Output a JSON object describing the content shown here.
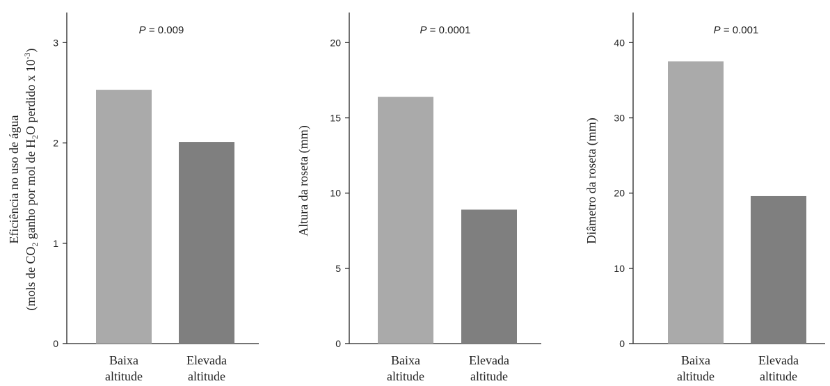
{
  "chart_data": [
    {
      "type": "bar",
      "annotation": {
        "var": "P",
        "text": " = 0.009"
      },
      "ylabel_line1": "Eficiência no uso de água",
      "ylabel_line2": {
        "a": "(mols de CO",
        "sub1": "2",
        "b": " ganho por mol de H",
        "sub2": "2",
        "c": "O perdido x 10",
        "sup": "-3",
        "d": ")"
      },
      "categories": [
        [
          "Baixa",
          "altitude"
        ],
        [
          "Elevada",
          "altitude"
        ]
      ],
      "values": [
        2.53,
        2.01
      ],
      "ylim": [
        0,
        3.3
      ],
      "yticks": [
        "0",
        "1",
        "2",
        "3"
      ],
      "colors": [
        "#aaaaaa",
        "#7f7f7f"
      ]
    },
    {
      "type": "bar",
      "annotation": {
        "var": "P",
        "text": " = 0.0001"
      },
      "ylabel": "Altura da roseta (mm)",
      "categories": [
        [
          "Baixa",
          "altitude"
        ],
        [
          "Elevada",
          "altitude"
        ]
      ],
      "values": [
        16.4,
        8.9
      ],
      "ylim": [
        0,
        22
      ],
      "yticks": [
        "0",
        "5",
        "10",
        "15",
        "20"
      ],
      "colors": [
        "#aaaaaa",
        "#7f7f7f"
      ]
    },
    {
      "type": "bar",
      "annotation": {
        "var": "P",
        "text": " = 0.001"
      },
      "ylabel": "Diâmetro da roseta (mm)",
      "categories": [
        [
          "Baixa",
          "altitude"
        ],
        [
          "Elevada",
          "altitude"
        ]
      ],
      "values": [
        37.5,
        19.6
      ],
      "ylim": [
        0,
        44
      ],
      "yticks": [
        "0",
        "10",
        "20",
        "30",
        "40"
      ],
      "colors": [
        "#aaaaaa",
        "#7f7f7f"
      ]
    }
  ]
}
